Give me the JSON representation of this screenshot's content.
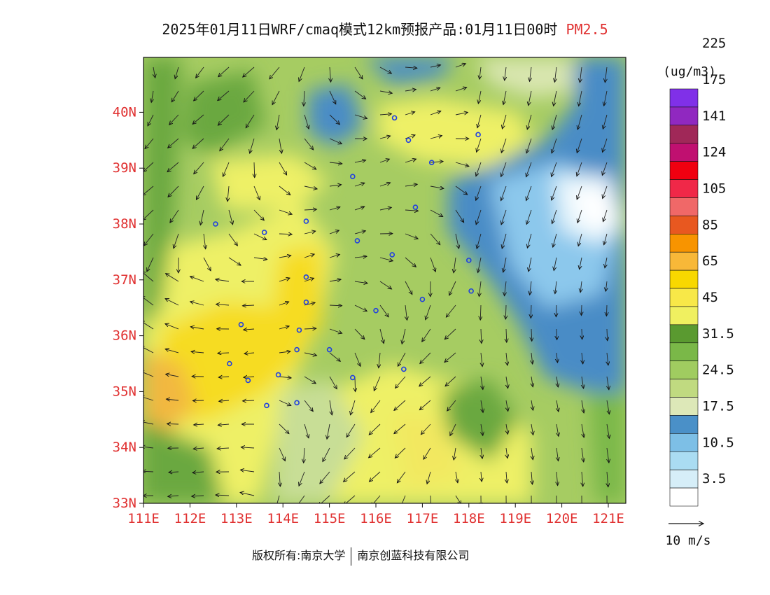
{
  "title": {
    "main": "2025年01月11日WRF/cmaq模式12km预报产品:01月11日00时",
    "variable": "PM2.5"
  },
  "map": {
    "lon_range": [
      111,
      121.4
    ],
    "lat_range": [
      33,
      41
    ],
    "lon_ticks": [
      "111E",
      "112E",
      "113E",
      "114E",
      "115E",
      "116E",
      "117E",
      "118E",
      "119E",
      "120E",
      "121E"
    ],
    "lat_ticks": [
      "33N",
      "34N",
      "35N",
      "36N",
      "37N",
      "38N",
      "39N",
      "40N"
    ],
    "tick_color": "#e03030"
  },
  "legend": {
    "unit": "(ug/m3)",
    "colors": [
      "#ffffff",
      "#d6eef8",
      "#aadcf2",
      "#7dbfe6",
      "#4a90c8",
      "#dde8b8",
      "#c0da80",
      "#a0cc60",
      "#7ab848",
      "#5a9a30",
      "#f0f060",
      "#f8e848",
      "#f8d800",
      "#f8b838",
      "#f89400",
      "#e85820",
      "#f06868",
      "#f02848",
      "#f00010",
      "#c01070",
      "#a02858",
      "#9028c0",
      "#8030e8"
    ],
    "labels": [
      "3.5",
      "10.5",
      "17.5",
      "24.5",
      "31.5",
      "45",
      "65",
      "85",
      "105",
      "124",
      "141",
      "175",
      "225"
    ],
    "vector_scale_label": "10 m/s"
  },
  "footer": {
    "copyright": "版权所有:南京大学",
    "company": "南京创蓝科技有限公司"
  }
}
